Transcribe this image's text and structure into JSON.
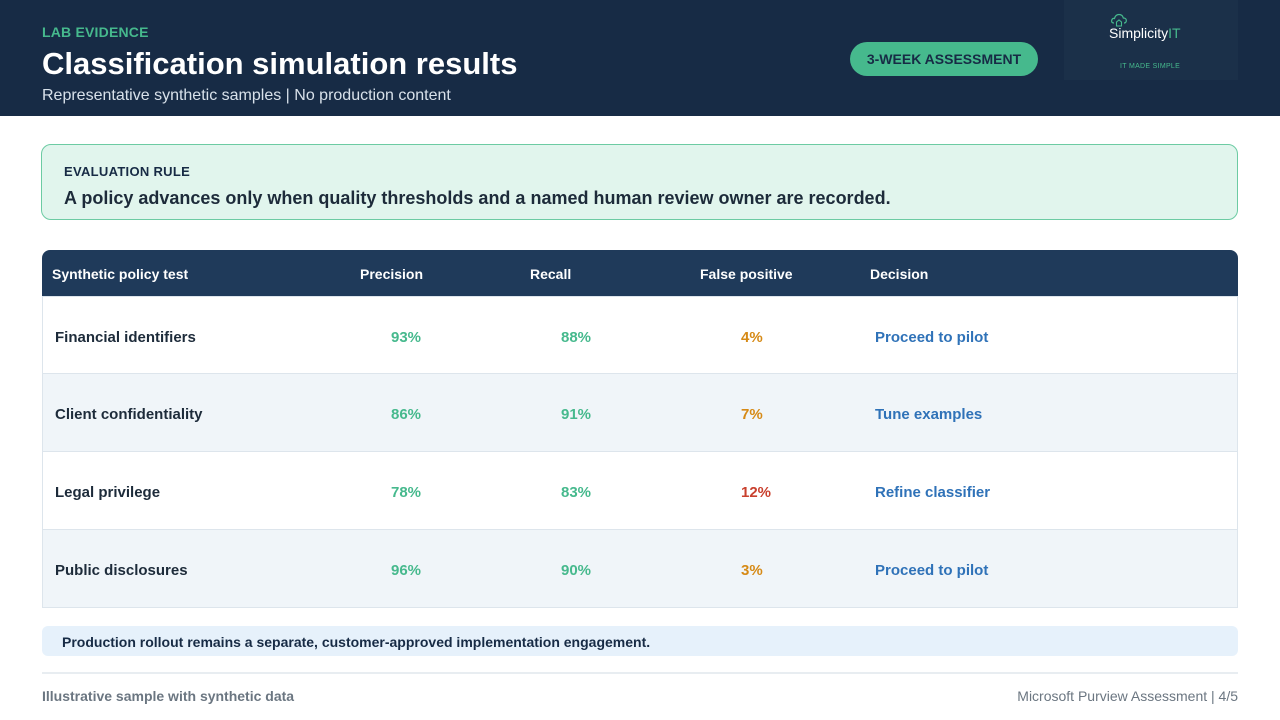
{
  "header": {
    "eyebrow": "LAB EVIDENCE",
    "title": "Classification simulation results",
    "subtitle": "Representative synthetic samples | No production content",
    "badge": "3-WEEK ASSESSMENT"
  },
  "logo": {
    "word_main": "Simplicity",
    "word_accent": "IT",
    "tagline": "IT MADE SIMPLE",
    "icon": "cloud-house-icon"
  },
  "evaluation_rule": {
    "label": "EVALUATION RULE",
    "text": "A policy advances only when quality thresholds and a named human review owner are recorded."
  },
  "table": {
    "columns": [
      "Synthetic policy test",
      "Precision",
      "Recall",
      "False positive",
      "Decision"
    ],
    "rows": [
      {
        "name": "Financial identifiers",
        "precision": "93%",
        "recall": "88%",
        "false_positive": "4%",
        "decision": "Proceed to pilot"
      },
      {
        "name": "Client confidentiality",
        "precision": "86%",
        "recall": "91%",
        "false_positive": "7%",
        "decision": "Tune examples"
      },
      {
        "name": "Legal privilege",
        "precision": "78%",
        "recall": "83%",
        "false_positive": "12%",
        "decision": "Refine classifier"
      },
      {
        "name": "Public disclosures",
        "precision": "96%",
        "recall": "90%",
        "false_positive": "3%",
        "decision": "Proceed to pilot"
      }
    ]
  },
  "note": "Production rollout remains a separate, customer-approved implementation engagement.",
  "footer": {
    "left": "Illustrative sample with synthetic data",
    "right": "Microsoft Purview Assessment | 4/5"
  },
  "colors": {
    "navy": "#172b45",
    "accent_green": "#46b98d",
    "decision_blue": "#2f72b8",
    "warning_amber": "#d68a16",
    "alert_red": "#c9402e"
  }
}
